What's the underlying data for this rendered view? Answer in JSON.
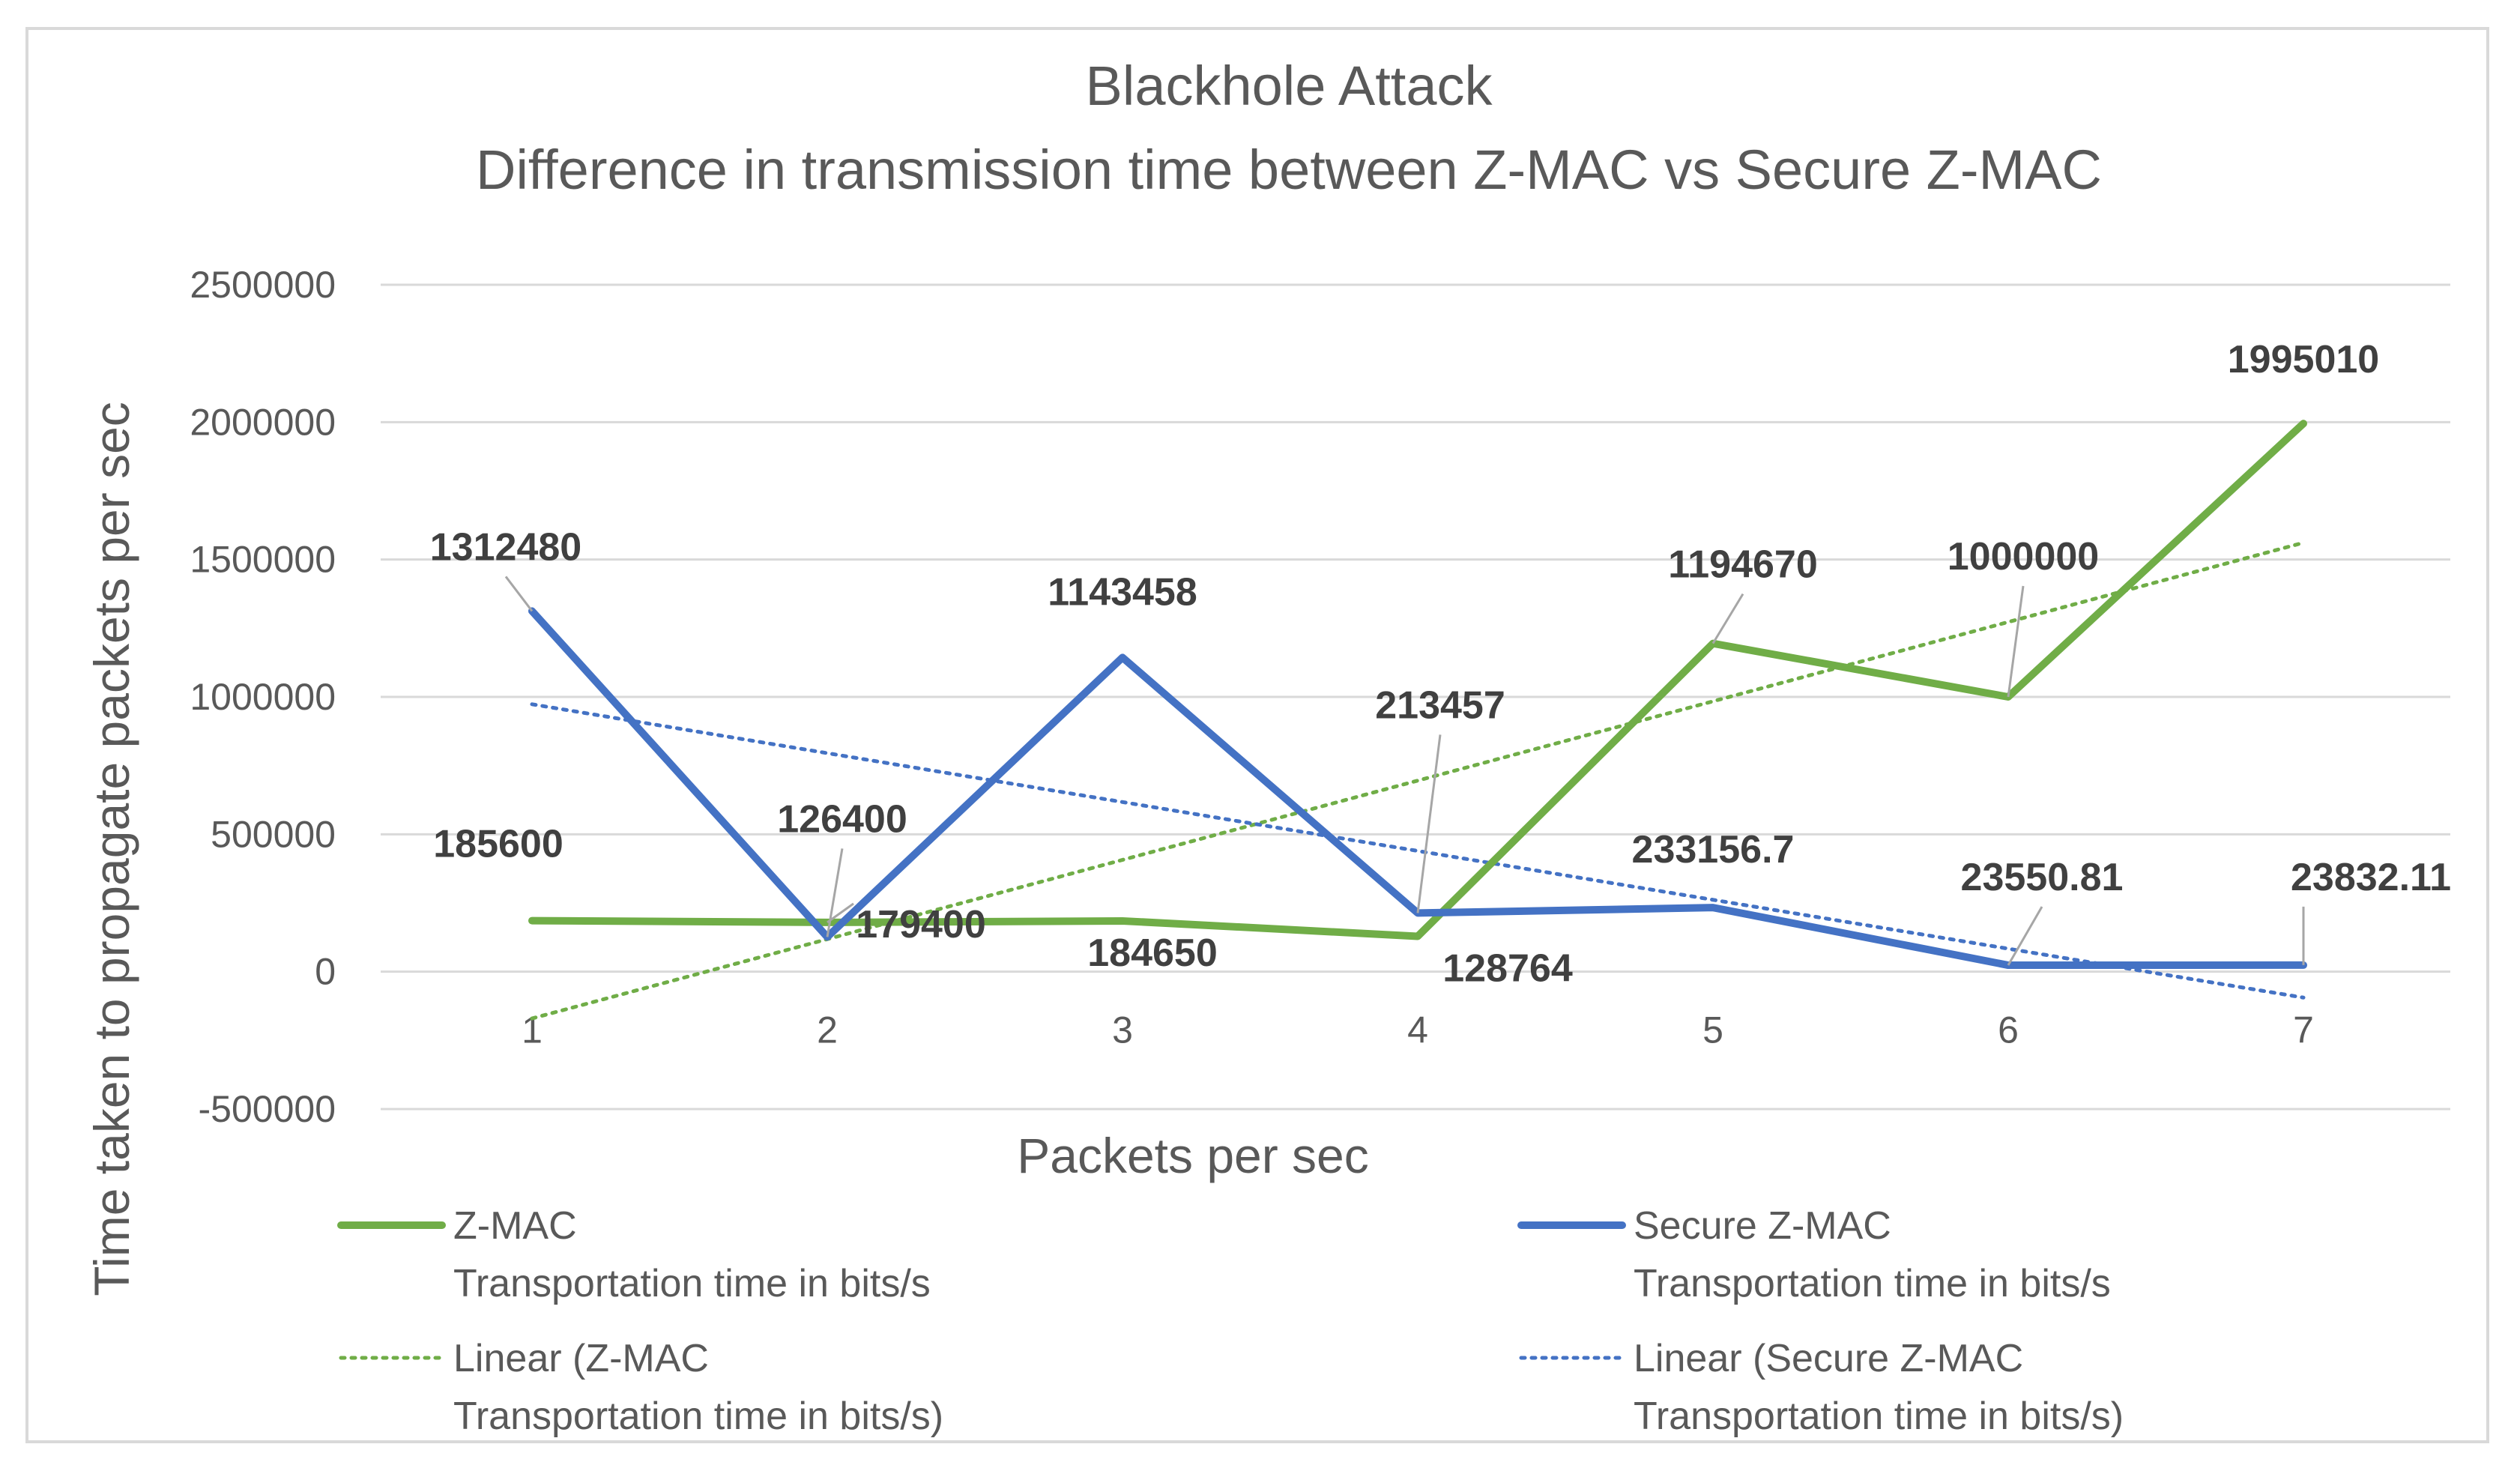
{
  "chart_data": {
    "type": "line",
    "title": "Blackhole Attack",
    "subtitle": "Difference in transmission time between Z-MAC vs Secure Z-MAC",
    "xlabel": "Packets per sec",
    "ylabel": "Time taken to propagate packets per sec",
    "categories": [
      "1",
      "2",
      "3",
      "4",
      "5",
      "6",
      "7"
    ],
    "ylim": [
      -500000,
      2500000
    ],
    "yticks": [
      "2500000",
      "2000000",
      "1500000",
      "1000000",
      "500000",
      "0",
      "-500000"
    ],
    "ytick_values": [
      2500000,
      2000000,
      1500000,
      1000000,
      500000,
      0,
      -500000
    ],
    "grid": true,
    "legend_position": "bottom",
    "series": [
      {
        "name": "Z-MAC",
        "name_line2": "Transportation time in bits/s",
        "values": [
          185600,
          179400,
          184650,
          128764,
          1194670,
          1000000,
          1995010
        ],
        "labels": [
          "185600",
          "179400",
          "184650",
          "128764",
          "1194670",
          "1000000",
          "1995010"
        ],
        "color": "#70ad47"
      },
      {
        "name": "Secure Z-MAC",
        "name_line2": "Transportation time  in bits/s",
        "values": [
          1312480,
          126400,
          1143458,
          213457,
          233156.7,
          23550.81,
          23832.11
        ],
        "labels": [
          "1312480",
          "126400",
          "1143458",
          "213457",
          "233156.7",
          "23550.81",
          "23832.11"
        ],
        "color": "#4472c4"
      }
    ],
    "trendlines": [
      {
        "name": "Linear (Z-MAC",
        "name_line2": "Transportation time in bits/s)",
        "of_series": 0,
        "color": "#70ad47"
      },
      {
        "name": "Linear (Secure Z-MAC",
        "name_line2": "Transportation time  in bits/s)",
        "of_series": 1,
        "color": "#4472c4"
      }
    ]
  }
}
